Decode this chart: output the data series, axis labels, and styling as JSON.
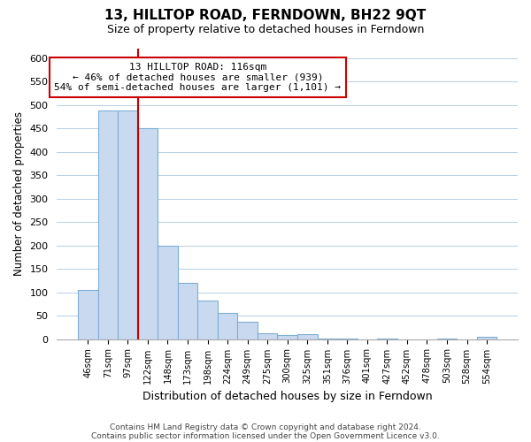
{
  "title": "13, HILLTOP ROAD, FERNDOWN, BH22 9QT",
  "subtitle": "Size of property relative to detached houses in Ferndown",
  "xlabel": "Distribution of detached houses by size in Ferndown",
  "ylabel": "Number of detached properties",
  "bar_labels": [
    "46sqm",
    "71sqm",
    "97sqm",
    "122sqm",
    "148sqm",
    "173sqm",
    "198sqm",
    "224sqm",
    "249sqm",
    "275sqm",
    "300sqm",
    "325sqm",
    "351sqm",
    "376sqm",
    "401sqm",
    "427sqm",
    "452sqm",
    "478sqm",
    "503sqm",
    "528sqm",
    "554sqm"
  ],
  "bar_values": [
    105,
    488,
    488,
    450,
    200,
    120,
    82,
    56,
    37,
    13,
    8,
    10,
    2,
    2,
    0,
    2,
    0,
    0,
    2,
    0,
    5
  ],
  "bar_color": "#c9d9f0",
  "bar_edge_color": "#7eaed4",
  "vline_color": "#cc0000",
  "annotation_text": "13 HILLTOP ROAD: 116sqm\n← 46% of detached houses are smaller (939)\n54% of semi-detached houses are larger (1,101) →",
  "annotation_box_color": "#ffffff",
  "annotation_box_edge": "#cc0000",
  "ylim": [
    0,
    620
  ],
  "yticks": [
    0,
    50,
    100,
    150,
    200,
    250,
    300,
    350,
    400,
    450,
    500,
    550,
    600
  ],
  "footnote1": "Contains HM Land Registry data © Crown copyright and database right 2024.",
  "footnote2": "Contains public sector information licensed under the Open Government Licence v3.0.",
  "bg_color": "#ffffff",
  "grid_color": "#b8cfe8"
}
